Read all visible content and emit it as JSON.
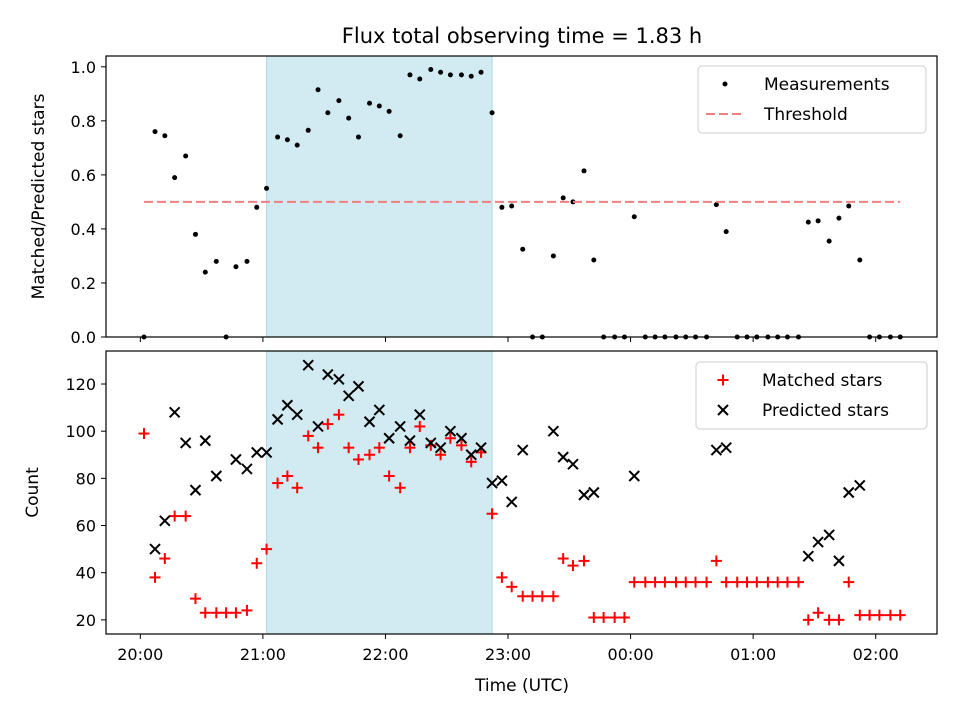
{
  "chart_data": {
    "title": "Flux total observing time = 1.83 h",
    "xlabel": "Time (UTC)",
    "x_ticks": [
      "20:00",
      "21:00",
      "22:00",
      "23:00",
      "00:00",
      "01:00",
      "02:00"
    ],
    "x_unit": "hours since 20:00 UTC",
    "xlim": [
      -0.28,
      6.5
    ],
    "highlight_span": [
      1.03,
      2.87
    ],
    "highlight_color": "#add8e6",
    "panels": [
      {
        "type": "scatter",
        "ylabel": "Matched/Predicted stars",
        "ylim": [
          0,
          1.04
        ],
        "y_ticks": [
          "0.0",
          "0.2",
          "0.4",
          "0.6",
          "0.8",
          "1.0"
        ],
        "y_tick_values": [
          0,
          0.2,
          0.4,
          0.6,
          0.8,
          1.0
        ],
        "legend_position": "top-right",
        "series": [
          {
            "name": "Measurements",
            "color": "#000000",
            "marker": "dot",
            "points": [
              [
                0.03,
                0.0
              ],
              [
                0.12,
                0.76
              ],
              [
                0.2,
                0.745
              ],
              [
                0.28,
                0.59
              ],
              [
                0.37,
                0.67
              ],
              [
                0.45,
                0.38
              ],
              [
                0.53,
                0.24
              ],
              [
                0.62,
                0.28
              ],
              [
                0.7,
                0.0
              ],
              [
                0.78,
                0.26
              ],
              [
                0.87,
                0.28
              ],
              [
                0.95,
                0.48
              ],
              [
                1.03,
                0.55
              ],
              [
                1.12,
                0.74
              ],
              [
                1.2,
                0.73
              ],
              [
                1.28,
                0.71
              ],
              [
                1.37,
                0.765
              ],
              [
                1.45,
                0.915
              ],
              [
                1.53,
                0.83
              ],
              [
                1.62,
                0.875
              ],
              [
                1.7,
                0.81
              ],
              [
                1.78,
                0.74
              ],
              [
                1.87,
                0.865
              ],
              [
                1.95,
                0.855
              ],
              [
                2.03,
                0.835
              ],
              [
                2.12,
                0.745
              ],
              [
                2.2,
                0.97
              ],
              [
                2.28,
                0.955
              ],
              [
                2.37,
                0.99
              ],
              [
                2.45,
                0.98
              ],
              [
                2.53,
                0.97
              ],
              [
                2.62,
                0.97
              ],
              [
                2.7,
                0.965
              ],
              [
                2.78,
                0.98
              ],
              [
                2.87,
                0.83
              ],
              [
                2.95,
                0.48
              ],
              [
                3.03,
                0.485
              ],
              [
                3.12,
                0.325
              ],
              [
                3.2,
                0.0
              ],
              [
                3.28,
                0.0
              ],
              [
                3.37,
                0.3
              ],
              [
                3.45,
                0.515
              ],
              [
                3.53,
                0.5
              ],
              [
                3.62,
                0.615
              ],
              [
                3.7,
                0.285
              ],
              [
                3.78,
                0.0
              ],
              [
                3.87,
                0.0
              ],
              [
                3.95,
                0.0
              ],
              [
                4.03,
                0.445
              ],
              [
                4.12,
                0.0
              ],
              [
                4.2,
                0.0
              ],
              [
                4.28,
                0.0
              ],
              [
                4.37,
                0.0
              ],
              [
                4.45,
                0.0
              ],
              [
                4.53,
                0.0
              ],
              [
                4.62,
                0.0
              ],
              [
                4.7,
                0.49
              ],
              [
                4.78,
                0.39
              ],
              [
                4.87,
                0.0
              ],
              [
                4.95,
                0.0
              ],
              [
                5.03,
                0.0
              ],
              [
                5.12,
                0.0
              ],
              [
                5.2,
                0.0
              ],
              [
                5.28,
                0.0
              ],
              [
                5.37,
                0.0
              ],
              [
                5.45,
                0.425
              ],
              [
                5.53,
                0.43
              ],
              [
                5.62,
                0.355
              ],
              [
                5.7,
                0.44
              ],
              [
                5.78,
                0.485
              ],
              [
                5.87,
                0.285
              ],
              [
                5.95,
                0.0
              ],
              [
                6.03,
                0.0
              ],
              [
                6.12,
                0.0
              ],
              [
                6.2,
                0.0
              ]
            ]
          },
          {
            "name": "Threshold",
            "color": "#f08080",
            "marker": "dashed-line",
            "points": [
              [
                0.03,
                0.5
              ],
              [
                6.2,
                0.5
              ]
            ]
          }
        ]
      },
      {
        "type": "scatter",
        "ylabel": "Count",
        "ylim": [
          14,
          134
        ],
        "y_ticks": [
          "20",
          "40",
          "60",
          "80",
          "100",
          "120"
        ],
        "y_tick_values": [
          20,
          40,
          60,
          80,
          100,
          120
        ],
        "legend_position": "top-right",
        "series": [
          {
            "name": "Matched stars",
            "color": "#ff0000",
            "marker": "plus",
            "points": [
              [
                0.03,
                99
              ],
              [
                0.12,
                38
              ],
              [
                0.2,
                46
              ],
              [
                0.28,
                64
              ],
              [
                0.37,
                64
              ],
              [
                0.45,
                29
              ],
              [
                0.53,
                23
              ],
              [
                0.62,
                23
              ],
              [
                0.7,
                23
              ],
              [
                0.78,
                23
              ],
              [
                0.87,
                24
              ],
              [
                0.95,
                44
              ],
              [
                1.03,
                50
              ],
              [
                1.12,
                78
              ],
              [
                1.2,
                81
              ],
              [
                1.28,
                76
              ],
              [
                1.37,
                98
              ],
              [
                1.45,
                93
              ],
              [
                1.53,
                103
              ],
              [
                1.62,
                107
              ],
              [
                1.7,
                93
              ],
              [
                1.78,
                88
              ],
              [
                1.87,
                90
              ],
              [
                1.95,
                93
              ],
              [
                2.03,
                81
              ],
              [
                2.12,
                76
              ],
              [
                2.2,
                93
              ],
              [
                2.28,
                102
              ],
              [
                2.37,
                94
              ],
              [
                2.45,
                90
              ],
              [
                2.53,
                97
              ],
              [
                2.62,
                94
              ],
              [
                2.7,
                87
              ],
              [
                2.78,
                91
              ],
              [
                2.87,
                65
              ],
              [
                2.95,
                38
              ],
              [
                3.03,
                34
              ],
              [
                3.12,
                30
              ],
              [
                3.2,
                30
              ],
              [
                3.28,
                30
              ],
              [
                3.37,
                30
              ],
              [
                3.45,
                46
              ],
              [
                3.53,
                43
              ],
              [
                3.62,
                45
              ],
              [
                3.7,
                21
              ],
              [
                3.78,
                21
              ],
              [
                3.87,
                21
              ],
              [
                3.95,
                21
              ],
              [
                4.03,
                36
              ],
              [
                4.12,
                36
              ],
              [
                4.2,
                36
              ],
              [
                4.28,
                36
              ],
              [
                4.37,
                36
              ],
              [
                4.45,
                36
              ],
              [
                4.53,
                36
              ],
              [
                4.62,
                36
              ],
              [
                4.7,
                45
              ],
              [
                4.78,
                36
              ],
              [
                4.87,
                36
              ],
              [
                4.95,
                36
              ],
              [
                5.03,
                36
              ],
              [
                5.12,
                36
              ],
              [
                5.2,
                36
              ],
              [
                5.28,
                36
              ],
              [
                5.37,
                36
              ],
              [
                5.45,
                20
              ],
              [
                5.53,
                23
              ],
              [
                5.62,
                20
              ],
              [
                5.7,
                20
              ],
              [
                5.78,
                36
              ],
              [
                5.87,
                22
              ],
              [
                5.95,
                22
              ],
              [
                6.03,
                22
              ],
              [
                6.12,
                22
              ],
              [
                6.2,
                22
              ]
            ]
          },
          {
            "name": "Predicted stars",
            "color": "#000000",
            "marker": "x",
            "points": [
              [
                0.12,
                50
              ],
              [
                0.2,
                62
              ],
              [
                0.28,
                108
              ],
              [
                0.37,
                95
              ],
              [
                0.45,
                75
              ],
              [
                0.53,
                96
              ],
              [
                0.62,
                81
              ],
              [
                0.78,
                88
              ],
              [
                0.87,
                84
              ],
              [
                0.95,
                91
              ],
              [
                1.03,
                91
              ],
              [
                1.12,
                105
              ],
              [
                1.2,
                111
              ],
              [
                1.28,
                107
              ],
              [
                1.37,
                128
              ],
              [
                1.45,
                102
              ],
              [
                1.53,
                124
              ],
              [
                1.62,
                122
              ],
              [
                1.7,
                115
              ],
              [
                1.78,
                119
              ],
              [
                1.87,
                104
              ],
              [
                1.95,
                109
              ],
              [
                2.03,
                97
              ],
              [
                2.12,
                102
              ],
              [
                2.2,
                96
              ],
              [
                2.28,
                107
              ],
              [
                2.37,
                95
              ],
              [
                2.45,
                93
              ],
              [
                2.53,
                100
              ],
              [
                2.62,
                97
              ],
              [
                2.7,
                90
              ],
              [
                2.78,
                93
              ],
              [
                2.87,
                78
              ],
              [
                2.95,
                79
              ],
              [
                3.03,
                70
              ],
              [
                3.12,
                92
              ],
              [
                3.37,
                100
              ],
              [
                3.45,
                89
              ],
              [
                3.53,
                86
              ],
              [
                3.62,
                73
              ],
              [
                3.7,
                74
              ],
              [
                4.03,
                81
              ],
              [
                4.7,
                92
              ],
              [
                4.78,
                93
              ],
              [
                5.45,
                47
              ],
              [
                5.53,
                53
              ],
              [
                5.62,
                56
              ],
              [
                5.7,
                45
              ],
              [
                5.78,
                74
              ],
              [
                5.87,
                77
              ]
            ]
          }
        ]
      }
    ]
  }
}
